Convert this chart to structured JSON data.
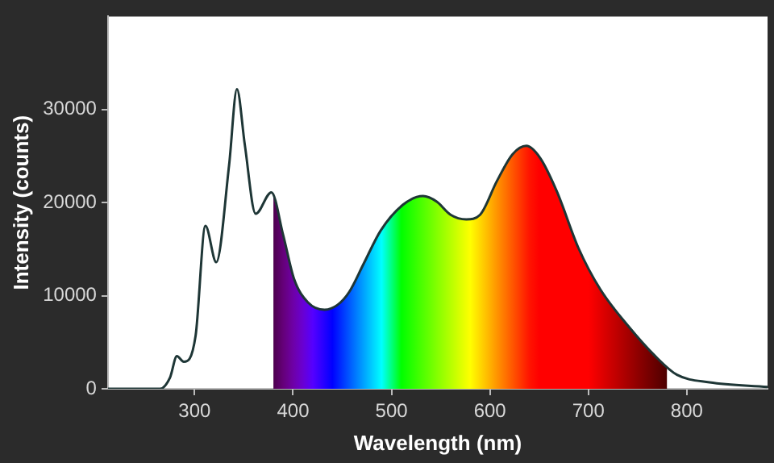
{
  "chart_data": {
    "type": "line",
    "xlabel": "Wavelength (nm)",
    "ylabel": "Intensity (counts)",
    "xlim": [
      212,
      882
    ],
    "ylim": [
      0,
      40000
    ],
    "xticks": [
      300,
      400,
      500,
      600,
      700,
      800
    ],
    "yticks": [
      0,
      10000,
      20000,
      30000
    ],
    "grid": false,
    "legend": false,
    "marker": "none",
    "series": [
      {
        "color": "#1e3636",
        "x": [
          212,
          265,
          275,
          282,
          289,
          301,
          311,
          322,
          335,
          343,
          351,
          362,
          378,
          390,
          401,
          415,
          432,
          445,
          457,
          472,
          489,
          512,
          532,
          546,
          560,
          576,
          590,
          607,
          623,
          637,
          651,
          668,
          690,
          712,
          740,
          768,
          790,
          823,
          882
        ],
        "values": [
          0,
          0,
          1200,
          3500,
          2900,
          5700,
          17500,
          13600,
          24000,
          32200,
          26200,
          18800,
          21100,
          16500,
          11800,
          9300,
          8500,
          9000,
          10400,
          13500,
          17000,
          19800,
          20700,
          20100,
          18700,
          18200,
          18700,
          22300,
          25200,
          26100,
          24800,
          21200,
          15100,
          10700,
          6800,
          3500,
          1500,
          700,
          200
        ]
      },
      {
        "type": "area",
        "color": "#ff0000",
        "x": [
          380,
          390,
          401,
          415,
          432,
          445,
          457,
          472,
          489,
          512,
          532,
          546,
          560,
          576,
          590,
          607,
          623,
          637,
          651,
          668,
          690,
          712,
          740,
          768,
          780
        ],
        "values": [
          20800,
          16500,
          11800,
          9300,
          8500,
          9000,
          10400,
          13500,
          17000,
          19800,
          20700,
          20100,
          18700,
          18200,
          18700,
          22300,
          25200,
          26100,
          24800,
          21200,
          15100,
          10700,
          6800,
          3500,
          2400
        ]
      }
    ]
  }
}
